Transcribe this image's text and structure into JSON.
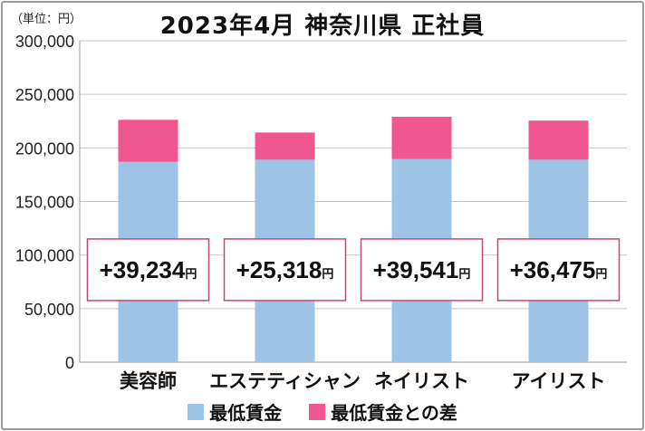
{
  "chart_data": {
    "type": "bar",
    "stacked": true,
    "unit_label": "（単位：円）",
    "title": "2023年4月 神奈川県 正社員",
    "categories": [
      "美容師",
      "エステティシャン",
      "ネイリスト",
      "アイリスト"
    ],
    "series": [
      {
        "name": "最低賃金",
        "color": "#9dc3e6",
        "values": [
          187000,
          189000,
          189500,
          189000
        ]
      },
      {
        "name": "最低賃金との差",
        "color": "#f0568f",
        "values": [
          39234,
          25318,
          39541,
          36475
        ]
      }
    ],
    "difference_labels": [
      {
        "value": "+39,234",
        "unit": "円"
      },
      {
        "value": "+25,318",
        "unit": "円"
      },
      {
        "value": "+39,541",
        "unit": "円"
      },
      {
        "value": "+36,475",
        "unit": "円"
      }
    ],
    "ylim": [
      0,
      300000
    ],
    "y_ticks": [
      "0",
      "50,000",
      "100,000",
      "150,000",
      "200,000",
      "250,000",
      "300,000"
    ],
    "grid": true,
    "legend_position": "bottom",
    "label_box_color": "#c0467a"
  }
}
